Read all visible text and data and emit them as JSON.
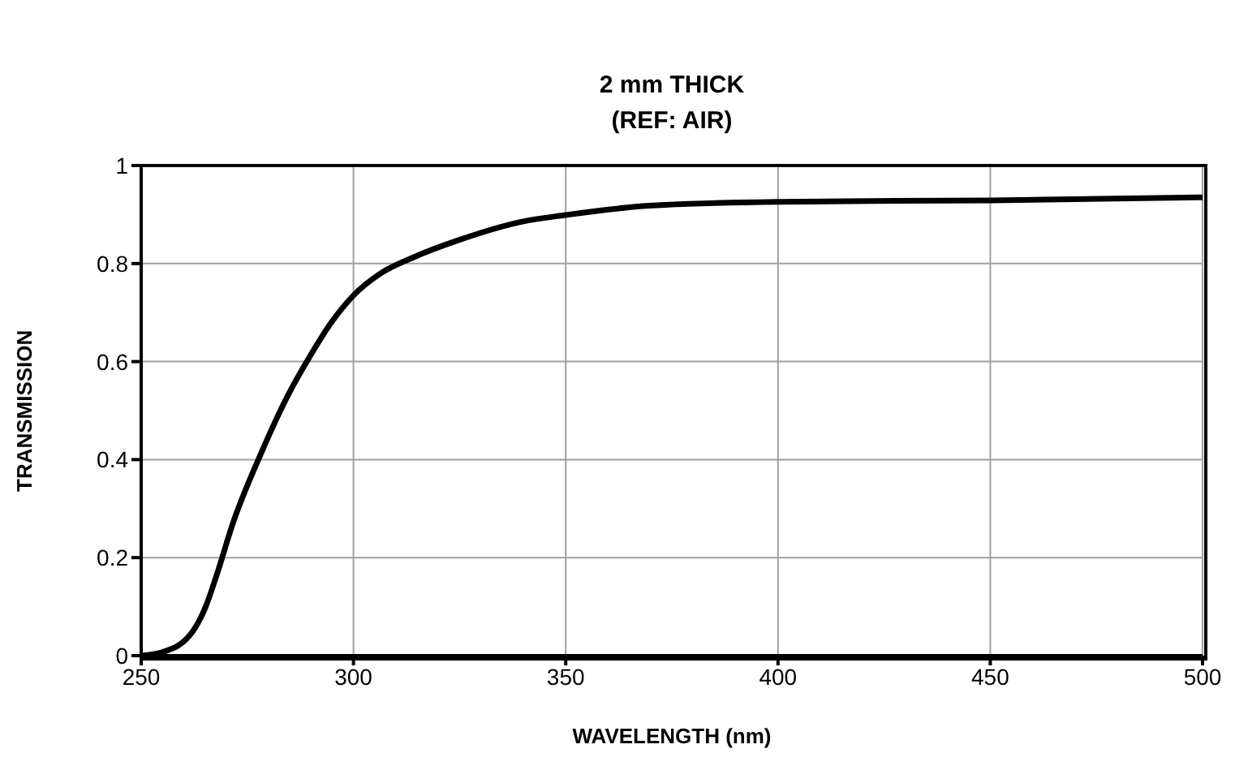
{
  "chart_data": {
    "type": "line",
    "title": "2 mm THICK",
    "subtitle": "(REF: AIR)",
    "xlabel": "WAVELENGTH (nm)",
    "ylabel": "TRANSMISSION",
    "x": [
      250,
      254.9,
      261.3,
      265.2,
      267.8,
      271.6,
      278.1,
      284.5,
      289.7,
      294.8,
      300,
      306.4,
      314.2,
      324.5,
      340,
      350,
      369.6,
      400,
      450,
      500
    ],
    "series": [
      {
        "color": "#000000",
        "values": [
          0,
          0.007,
          0.04,
          0.1,
          0.165,
          0.27,
          0.41,
          0.53,
          0.61,
          0.68,
          0.735,
          0.78,
          0.813,
          0.847,
          0.886,
          0.899,
          0.918,
          0.926,
          0.929,
          0.935
        ]
      }
    ],
    "xlim": [
      250,
      500
    ],
    "xticks": [
      250,
      300,
      350,
      400,
      450,
      500
    ],
    "ylim": [
      0,
      1
    ],
    "yticks": [
      0,
      0.2,
      0.4,
      0.6,
      0.8,
      1
    ],
    "grid": true
  }
}
